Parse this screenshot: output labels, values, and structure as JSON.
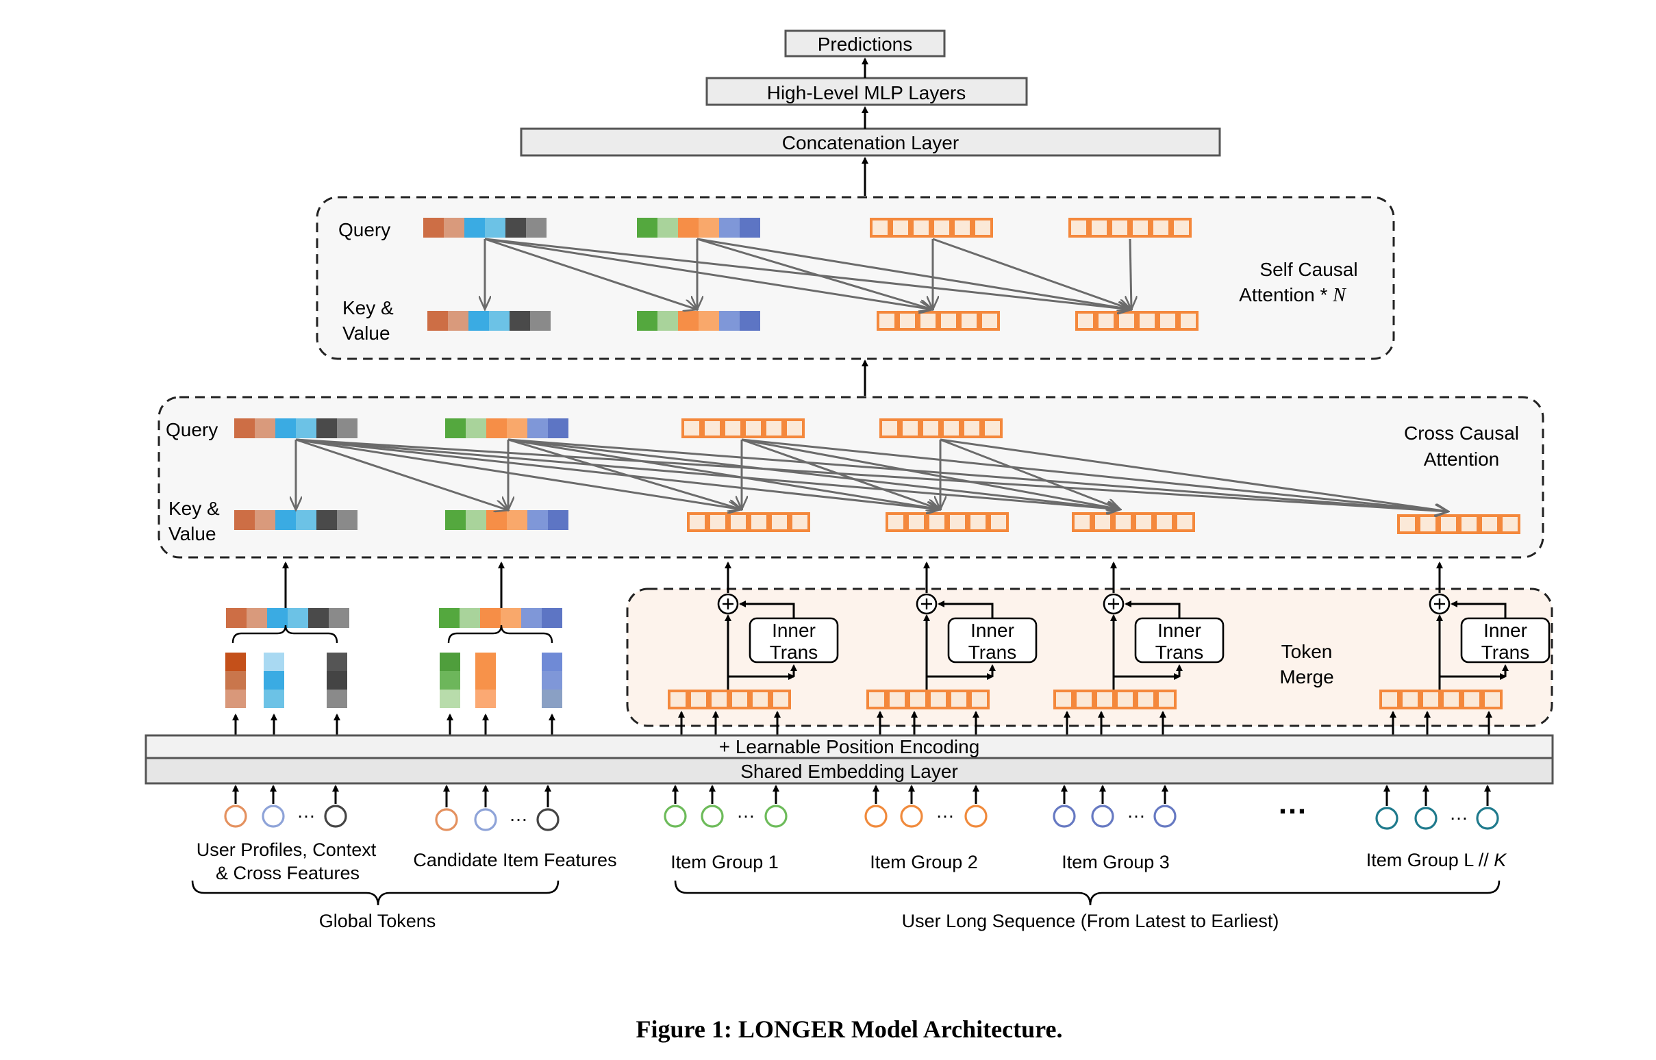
{
  "blocks": {
    "predictions": "Predictions",
    "mlp": "High-Level MLP Layers",
    "concat": "Concatenation Layer",
    "position_encoding": "+ Learnable Position Encoding",
    "shared_embedding": "Shared Embedding Layer"
  },
  "self_attention": {
    "query": "Query",
    "key_value_1": "Key &",
    "key_value_2": "Value",
    "title_1": "Self Causal",
    "title_2": "Attention * ",
    "title_n": "N"
  },
  "cross_attention": {
    "query": "Query",
    "key_value_1": "Key &",
    "key_value_2": "Value",
    "title_1": "Cross Causal",
    "title_2": "Attention"
  },
  "token_merge": {
    "title_1": "Token",
    "title_2": "Merge",
    "inner_1": "Inner",
    "inner_2": "Trans"
  },
  "inputs": {
    "user_profiles_1": "User Profiles, Context",
    "user_profiles_2": "& Cross Features",
    "candidate": "Candidate Item Features",
    "groups": [
      "Item Group 1",
      "Item Group 2",
      "Item Group 3"
    ],
    "group_last_prefix": "Item Group L // ",
    "group_last_k": "K",
    "ellipsis": "…",
    "big_ellipsis": "…"
  },
  "braces": {
    "global": "Global Tokens",
    "sequence": "User Long Sequence (From Latest to Earliest)"
  },
  "caption": "Figure 1: LONGER Model Architecture.",
  "colors": {
    "orange": "#f4883c",
    "orange_fill": "#fbe9d8",
    "merge_fill": "#fdf3ec",
    "panel_fill": "#f7f7f7",
    "arrow_gray": "#6b6b6b",
    "user_colors": [
      "#cd6e45",
      "#d99a7c",
      "#3aabe3",
      "#6cc2e6",
      "#4a4a4a",
      "#8a8a8a"
    ],
    "item_colors": [
      "#54a83e",
      "#a9d39b",
      "#f68e47",
      "#f9a86b",
      "#7f97d8",
      "#5d75c4"
    ],
    "user_circles": [
      "#e4915f",
      "#8ea3d8",
      "#444444"
    ],
    "group_circle_colors": [
      "#6dbb5a",
      "#f08a3c",
      "#6679c2",
      "#1f7a8c"
    ]
  }
}
